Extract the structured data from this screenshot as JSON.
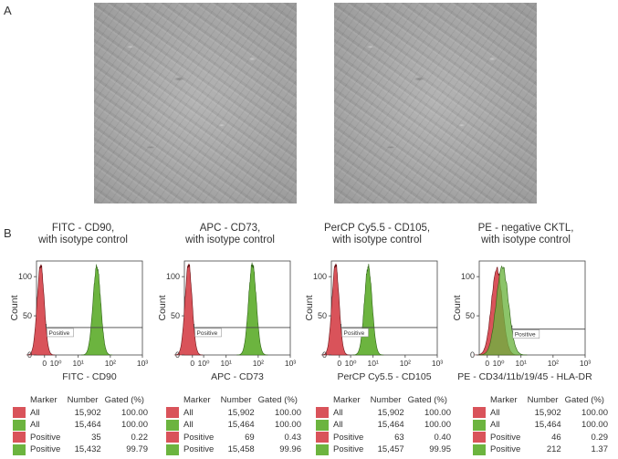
{
  "panel_a_label": "A",
  "panel_b_label": "B",
  "colors": {
    "isotype_fill": "#d9535a",
    "isotype_stroke": "#6b1418",
    "marker_fill": "#6cb43f",
    "marker_stroke": "#2f6316",
    "overlap_fill": "#9a6224",
    "micrograph_bg": "#a9a9a9"
  },
  "micrographs": [
    {
      "name": "micrograph-left"
    },
    {
      "name": "micrograph-right"
    }
  ],
  "panels": [
    {
      "title_line1": "FITC - CD90,",
      "title_line2": "with isotype control",
      "x_label": "FITC - CD90",
      "y_label": "Count",
      "gate_label": "Positive",
      "table": {
        "headers": [
          "Marker",
          "Number",
          "Gated (%)"
        ],
        "rows": [
          {
            "swatch": "isotype",
            "marker": "All",
            "number": "15,902",
            "gated": "100.00"
          },
          {
            "swatch": "marker",
            "marker": "All",
            "number": "15,464",
            "gated": "100.00"
          },
          {
            "swatch": "isotype",
            "marker": "Positive",
            "number": "35",
            "gated": "0.22"
          },
          {
            "swatch": "marker",
            "marker": "Positive",
            "number": "15,432",
            "gated": "99.79"
          }
        ]
      }
    },
    {
      "title_line1": "APC - CD73,",
      "title_line2": "with isotype control",
      "x_label": "APC - CD73",
      "y_label": "Count",
      "gate_label": "Positive",
      "table": {
        "headers": [
          "Marker",
          "Number",
          "Gated (%)"
        ],
        "rows": [
          {
            "swatch": "isotype",
            "marker": "All",
            "number": "15,902",
            "gated": "100.00"
          },
          {
            "swatch": "marker",
            "marker": "All",
            "number": "15,464",
            "gated": "100.00"
          },
          {
            "swatch": "isotype",
            "marker": "Positive",
            "number": "69",
            "gated": "0.43"
          },
          {
            "swatch": "marker",
            "marker": "Positive",
            "number": "15,458",
            "gated": "99.96"
          }
        ]
      }
    },
    {
      "title_line1": "PerCP Cy5.5 - CD105,",
      "title_line2": "with isotype control",
      "x_label": "PerCP Cy5.5 - CD105",
      "y_label": "Count",
      "gate_label": "Positive",
      "table": {
        "headers": [
          "Marker",
          "Number",
          "Gated (%)"
        ],
        "rows": [
          {
            "swatch": "isotype",
            "marker": "All",
            "number": "15,902",
            "gated": "100.00"
          },
          {
            "swatch": "marker",
            "marker": "All",
            "number": "15,464",
            "gated": "100.00"
          },
          {
            "swatch": "isotype",
            "marker": "Positive",
            "number": "63",
            "gated": "0.40"
          },
          {
            "swatch": "marker",
            "marker": "Positive",
            "number": "15,457",
            "gated": "99.95"
          }
        ]
      }
    },
    {
      "title_line1": "PE - negative CKTL,",
      "title_line2": "with isotype control",
      "x_label": "PE - CD34/11b/19/45 - HLA-DR",
      "y_label": "Count",
      "gate_label": "Positive",
      "table": {
        "headers": [
          "Marker",
          "Number",
          "Gated (%)"
        ],
        "rows": [
          {
            "swatch": "isotype",
            "marker": "All",
            "number": "15,902",
            "gated": "100.00"
          },
          {
            "swatch": "marker",
            "marker": "All",
            "number": "15,464",
            "gated": "100.00"
          },
          {
            "swatch": "isotype",
            "marker": "Positive",
            "number": "46",
            "gated": "0.29"
          },
          {
            "swatch": "marker",
            "marker": "Positive",
            "number": "212",
            "gated": "1.37"
          }
        ]
      }
    }
  ],
  "chart_data": [
    {
      "type": "area",
      "title": "FITC - CD90, with isotype control",
      "xlabel": "FITC - CD90",
      "ylabel": "Count",
      "x_scale": "log",
      "xlim": [
        -0.3,
        3
      ],
      "ylim": [
        0,
        120
      ],
      "xticks": [
        "0",
        "10⁰",
        "10¹",
        "10²",
        "10³"
      ],
      "yticks": [
        0,
        50,
        100
      ],
      "gate": {
        "label": "Positive",
        "x_start": 0.0,
        "x_end": 3,
        "y": 35
      },
      "series": [
        {
          "role": "isotype",
          "peak_x": -0.17,
          "peak_y": 115,
          "width": 0.11
        },
        {
          "role": "marker",
          "peak_x": 1.58,
          "peak_y": 113,
          "width": 0.12
        }
      ]
    },
    {
      "type": "area",
      "title": "APC - CD73, with isotype control",
      "xlabel": "APC - CD73",
      "ylabel": "Count",
      "x_scale": "log",
      "xlim": [
        -0.3,
        3
      ],
      "ylim": [
        0,
        120
      ],
      "xticks": [
        "0",
        "10⁰",
        "10¹",
        "10²",
        "10³"
      ],
      "yticks": [
        0,
        50,
        100
      ],
      "gate": {
        "label": "Positive",
        "x_start": 0.0,
        "x_end": 3,
        "y": 35
      },
      "series": [
        {
          "role": "isotype",
          "peak_x": -0.17,
          "peak_y": 116,
          "width": 0.11
        },
        {
          "role": "marker",
          "peak_x": 1.82,
          "peak_y": 116,
          "width": 0.12
        }
      ]
    },
    {
      "type": "area",
      "title": "PerCP Cy5.5 - CD105, with isotype control",
      "xlabel": "PerCP Cy5.5 - CD105",
      "ylabel": "Count",
      "x_scale": "log",
      "xlim": [
        -0.3,
        3
      ],
      "ylim": [
        0,
        120
      ],
      "xticks": [
        "0",
        "10⁰",
        "10¹",
        "10²",
        "10³"
      ],
      "yticks": [
        0,
        50,
        100
      ],
      "gate": {
        "label": "Positive",
        "x_start": 0.0,
        "x_end": 3,
        "y": 35
      },
      "series": [
        {
          "role": "isotype",
          "peak_x": -0.17,
          "peak_y": 116,
          "width": 0.11
        },
        {
          "role": "marker",
          "peak_x": 0.85,
          "peak_y": 113,
          "width": 0.12
        }
      ]
    },
    {
      "type": "area",
      "title": "PE - negative CKTL, with isotype control",
      "xlabel": "PE - CD34/11b/19/45 - HLA-DR",
      "ylabel": "Count",
      "x_scale": "log",
      "xlim": [
        -0.3,
        3
      ],
      "ylim": [
        0,
        120
      ],
      "xticks": [
        "0",
        "10⁰",
        "10¹",
        "10²",
        "10³"
      ],
      "yticks": [
        0,
        50,
        100
      ],
      "gate": {
        "label": "Positive",
        "x_start": 0.72,
        "x_end": 3,
        "y": 33
      },
      "series": [
        {
          "role": "isotype",
          "peak_x": 0.25,
          "peak_y": 110,
          "width": 0.17
        },
        {
          "role": "marker",
          "peak_x": 0.42,
          "peak_y": 113,
          "width": 0.19
        }
      ]
    }
  ]
}
